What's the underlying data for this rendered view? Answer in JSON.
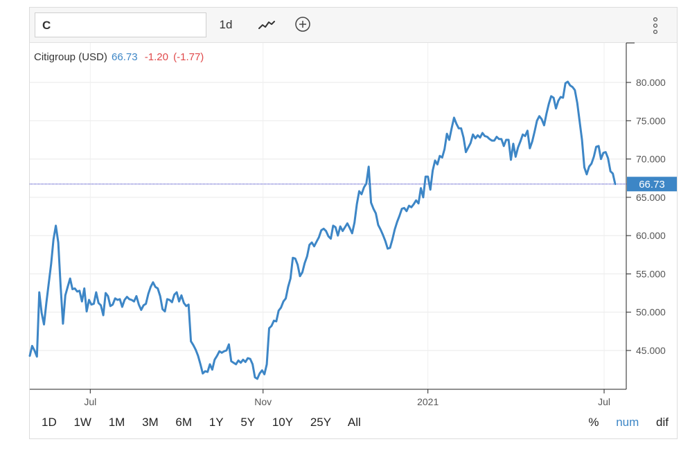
{
  "toolbar": {
    "symbol": "C",
    "interval": "1d",
    "chart_type_icon": "line-chart-icon",
    "compare_icon": "plus-circle-icon",
    "menu_icon": "vertical-dots-icon"
  },
  "legend": {
    "name": "Citigroup (USD)",
    "last": "66.73",
    "change": "-1.20",
    "change_pct": "(-1.77)"
  },
  "ranges": [
    "1D",
    "1W",
    "1M",
    "3M",
    "6M",
    "1Y",
    "5Y",
    "10Y",
    "25Y",
    "All"
  ],
  "modes": [
    {
      "label": "%",
      "active": false
    },
    {
      "label": "num",
      "active": true
    },
    {
      "label": "dif",
      "active": false
    }
  ],
  "colors": {
    "line": "#3d86c6",
    "price_badge": "#3d86c6",
    "change_negative": "#e0494a",
    "reference_line": "#1a1ab8"
  },
  "chart_data": {
    "type": "line",
    "title": "Citigroup (USD)",
    "x_ticks": [
      "Jul",
      "Nov",
      "2021",
      "Jul"
    ],
    "y_ticks": [
      "45.000",
      "50.000",
      "55.000",
      "60.000",
      "65.000",
      "70.000",
      "75.000",
      "80.000"
    ],
    "ylim": [
      40.5,
      85.5
    ],
    "current_value_label": "66.73",
    "current_value": 66.73,
    "grid": true,
    "series": [
      {
        "values": [
          44.3,
          45.6,
          45.0,
          44.2,
          52.6,
          49.9,
          48.4,
          51.2,
          53.8,
          56.3,
          59.5,
          61.3,
          59.1,
          53.4,
          48.5,
          52.2,
          53.3,
          54.4,
          53.0,
          53.1,
          52.7,
          52.8,
          51.4,
          53.1,
          50.1,
          51.6,
          51.0,
          51.1,
          52.6,
          51.2,
          50.9,
          49.6,
          52.5,
          52.1,
          50.8,
          51.0,
          51.8,
          51.6,
          51.7,
          50.7,
          51.6,
          52.0,
          51.7,
          51.6,
          51.4,
          52.1,
          51.0,
          50.3,
          50.9,
          51.1,
          52.4,
          53.3,
          53.9,
          53.3,
          53.1,
          52.1,
          50.4,
          50.1,
          51.7,
          51.6,
          51.3,
          52.3,
          52.6,
          51.4,
          52.2,
          51.2,
          50.8,
          51.0,
          46.2,
          45.7,
          45.1,
          44.3,
          43.2,
          42.0,
          42.3,
          42.2,
          43.2,
          42.5,
          43.8,
          44.3,
          44.9,
          44.7,
          44.9,
          45.0,
          45.8,
          43.6,
          43.4,
          43.2,
          43.7,
          43.4,
          43.8,
          43.5,
          44.0,
          43.9,
          43.2,
          41.5,
          41.3,
          42.0,
          42.4,
          41.9,
          43.2,
          47.9,
          48.2,
          48.9,
          48.8,
          50.2,
          50.6,
          51.4,
          51.8,
          53.3,
          54.4,
          57.1,
          57.0,
          56.2,
          54.7,
          55.2,
          56.4,
          57.3,
          58.8,
          59.1,
          58.6,
          59.2,
          59.8,
          60.7,
          60.9,
          60.6,
          59.9,
          59.6,
          61.3,
          61.1,
          60.0,
          61.2,
          60.6,
          61.1,
          61.6,
          61.0,
          60.3,
          61.7,
          64.1,
          65.8,
          65.4,
          66.3,
          66.8,
          69.0,
          64.3,
          63.5,
          62.9,
          61.4,
          60.8,
          60.1,
          59.3,
          58.3,
          58.4,
          59.5,
          60.8,
          61.8,
          62.6,
          63.5,
          63.6,
          63.2,
          63.9,
          63.7,
          64.1,
          64.6,
          64.2,
          66.2,
          65.0,
          67.7,
          67.7,
          66.0,
          68.5,
          69.8,
          69.3,
          70.4,
          70.2,
          71.3,
          73.3,
          72.5,
          74.0,
          75.4,
          74.6,
          74.0,
          74.0,
          72.8,
          70.9,
          71.5,
          72.1,
          73.2,
          72.7,
          73.1,
          72.8,
          73.4,
          73.0,
          72.9,
          72.6,
          72.4,
          72.4,
          72.9,
          72.6,
          72.6,
          71.7,
          72.5,
          72.5,
          69.9,
          72.0,
          70.3,
          71.5,
          72.3,
          73.2,
          73.0,
          73.7,
          71.4,
          72.3,
          73.6,
          75.0,
          75.6,
          75.2,
          74.4,
          75.9,
          77.2,
          78.2,
          78.0,
          76.6,
          77.6,
          78.1,
          78.0,
          79.9,
          80.1,
          79.6,
          79.4,
          79.0,
          77.3,
          74.9,
          72.5,
          68.9,
          68.0,
          69.0,
          69.4,
          70.3,
          71.6,
          71.7,
          70.0,
          70.8,
          70.9,
          70.1,
          68.4,
          68.1,
          66.73
        ]
      }
    ]
  }
}
